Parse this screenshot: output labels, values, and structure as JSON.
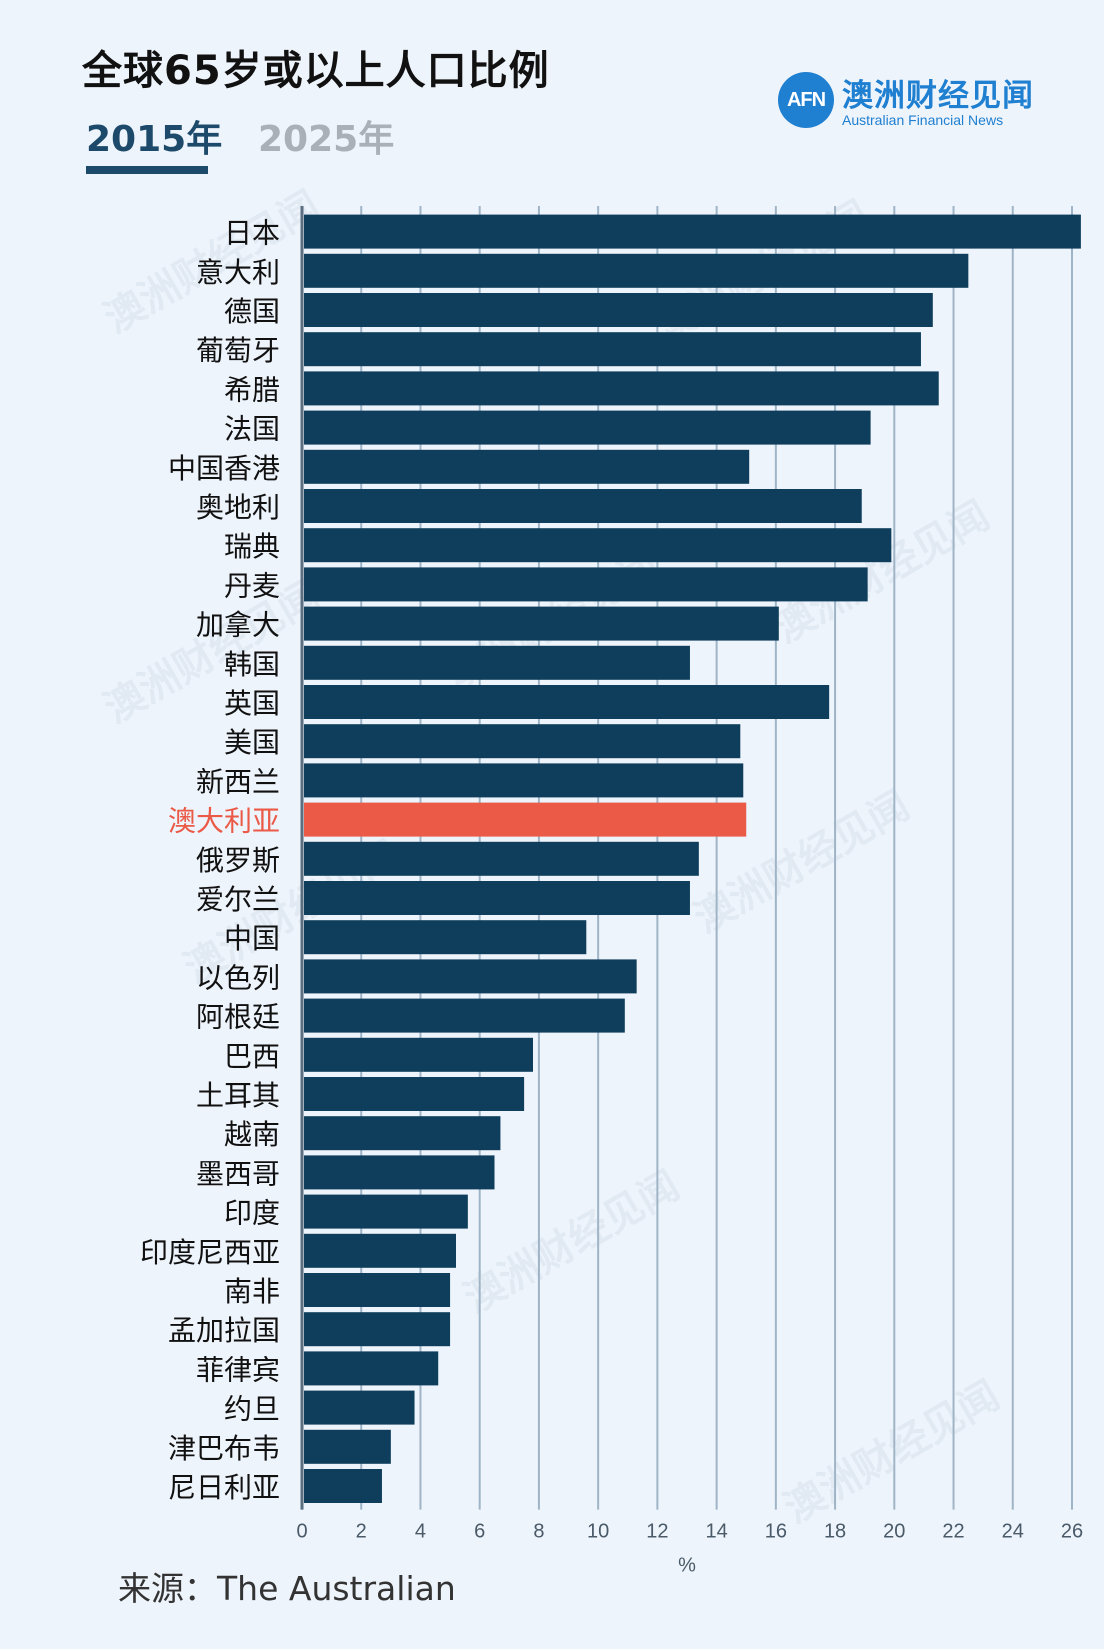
{
  "title": "全球65岁或以上人口比例",
  "tabs": [
    {
      "label": "2015年",
      "active": true
    },
    {
      "label": "2025年",
      "active": false
    }
  ],
  "brand": {
    "logo_text": "AFN",
    "name_cn": "澳洲财经见闻",
    "name_en": "Australian Financial News"
  },
  "source": "来源：The Australian",
  "colors": {
    "bar": "#0f3e5c",
    "highlight": "#ea5a47",
    "grid": "#9fb4c6",
    "accent": "#1d4a6b",
    "brand": "#1f7fd0"
  },
  "chart_data": {
    "type": "bar",
    "orientation": "horizontal",
    "xlabel": "%",
    "xlim": [
      0,
      26
    ],
    "xticks": [
      0,
      2,
      4,
      6,
      8,
      10,
      12,
      14,
      16,
      18,
      20,
      22,
      24,
      26
    ],
    "grid": true,
    "highlight": "澳大利亚",
    "categories": [
      "日本",
      "意大利",
      "德国",
      "葡萄牙",
      "希腊",
      "法国",
      "中国香港",
      "奥地利",
      "瑞典",
      "丹麦",
      "加拿大",
      "韩国",
      "英国",
      "美国",
      "新西兰",
      "澳大利亚",
      "俄罗斯",
      "爱尔兰",
      "中国",
      "以色列",
      "阿根廷",
      "巴西",
      "土耳其",
      "越南",
      "墨西哥",
      "印度",
      "印度尼西亚",
      "南非",
      "孟加拉国",
      "菲律宾",
      "约旦",
      "津巴布韦",
      "尼日利亚"
    ],
    "values": [
      26.3,
      22.5,
      21.3,
      20.9,
      21.5,
      19.2,
      15.1,
      18.9,
      19.9,
      19.1,
      16.1,
      13.1,
      17.8,
      14.8,
      14.9,
      15.0,
      13.4,
      13.1,
      9.6,
      11.3,
      10.9,
      7.8,
      7.5,
      6.7,
      6.5,
      5.6,
      5.2,
      5.0,
      5.0,
      4.6,
      3.8,
      3.0,
      2.7
    ]
  }
}
